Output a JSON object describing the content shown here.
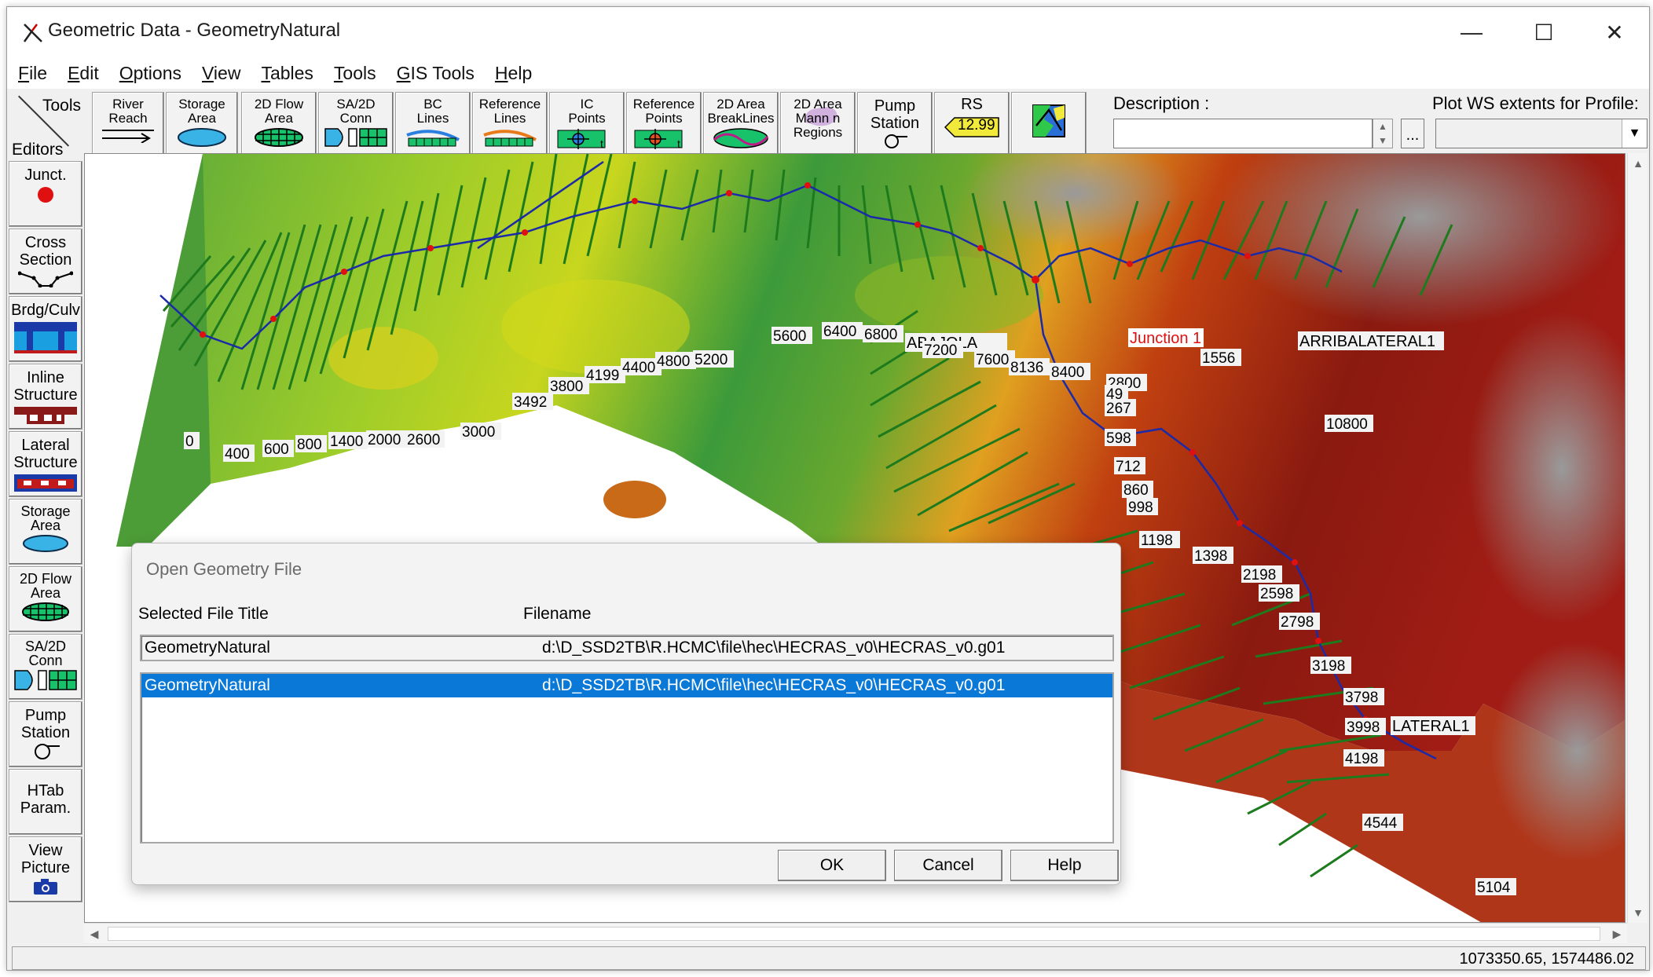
{
  "window": {
    "title": "Geometric Data - GeometryNatural",
    "minimize_glyph": "—",
    "maximize_glyph": "☐",
    "close_glyph": "✕"
  },
  "menu": {
    "items": [
      {
        "key": "F",
        "rest": "ile"
      },
      {
        "key": "E",
        "rest": "dit"
      },
      {
        "key": "O",
        "rest": "ptions"
      },
      {
        "key": "V",
        "rest": "iew"
      },
      {
        "key": "T",
        "rest": "ables"
      },
      {
        "key": "T",
        "rest": "ools"
      },
      {
        "key": "G",
        "rest": "IS Tools"
      },
      {
        "key": "H",
        "rest": "elp"
      }
    ]
  },
  "toolbar": {
    "tools_label": "Tools",
    "editors_label": "Editors",
    "buttons": [
      {
        "label": "River\nReach",
        "icon": "river-reach-icon"
      },
      {
        "label": "Storage\nArea",
        "icon": "storage-area-icon"
      },
      {
        "label": "2D Flow\nArea",
        "icon": "2d-flow-area-icon"
      },
      {
        "label": "SA/2D\nConn",
        "icon": "sa-2d-conn-icon"
      },
      {
        "label": "BC\nLines",
        "icon": "bc-lines-icon"
      },
      {
        "label": "Reference\nLines",
        "icon": "reference-lines-icon"
      },
      {
        "label": "IC\nPoints",
        "icon": "ic-points-icon"
      },
      {
        "label": "Reference\nPoints",
        "icon": "reference-points-icon"
      },
      {
        "label": "2D Area\nBreakLines",
        "icon": "breaklines-icon"
      },
      {
        "label": "2D Area\nMann n\nRegions",
        "icon": "mann-n-regions-icon"
      },
      {
        "label": "Pump\nStation",
        "icon": "pump-station-icon"
      },
      {
        "label": "RS",
        "icon": "rs-icon"
      },
      {
        "label": "",
        "icon": "gis-map-icon"
      }
    ],
    "rs_value": "12.99",
    "description_label": "Description :",
    "description_value": "",
    "description_more": "...",
    "profile_label": "Plot WS extents for Profile:",
    "profile_value": ""
  },
  "editors": [
    {
      "label": "Junct.",
      "icon": "junction-icon"
    },
    {
      "label": "Cross\nSection",
      "icon": "cross-section-icon"
    },
    {
      "label": "Brdg/Culv",
      "icon": "bridge-culvert-icon"
    },
    {
      "label": "Inline\nStructure",
      "icon": "inline-structure-icon"
    },
    {
      "label": "Lateral\nStructure",
      "icon": "lateral-structure-icon"
    },
    {
      "label": "Storage\nArea",
      "icon": "storage-area-icon"
    },
    {
      "label": "2D Flow\nArea",
      "icon": "2d-flow-area-icon"
    },
    {
      "label": "SA/2D\nConn",
      "icon": "sa-2d-conn-icon"
    },
    {
      "label": "Pump\nStation",
      "icon": "pump-station-icon"
    },
    {
      "label": "HTab\nParam.",
      "icon": ""
    },
    {
      "label": "View\nPicture",
      "icon": "camera-icon"
    }
  ],
  "map": {
    "river_labels": [
      "ABAJOLA",
      "ARRIBALATERAL1",
      "LATERAL1"
    ],
    "junction_label": "Junction 1",
    "main_reach_xs": [
      "0",
      "400",
      "600",
      "800",
      "1400",
      "2000",
      "2600",
      "3000",
      "3492",
      "3800",
      "4199",
      "4400",
      "4800",
      "5200",
      "5600",
      "6400",
      "6800",
      "7200",
      "7600",
      "8136",
      "8400"
    ],
    "upper_reach_xs": [
      "1556",
      "10800"
    ],
    "lateral_xs": [
      "2800",
      "49",
      "267",
      "598",
      "712",
      "860",
      "998",
      "1198",
      "1398",
      "2198",
      "2598",
      "2798",
      "3198",
      "3798",
      "3998",
      "4198",
      "4544",
      "5104"
    ]
  },
  "status": {
    "coordinates": "1073350.65, 1574486.02"
  },
  "dialog": {
    "title": "Open Geometry File",
    "col_title": "Selected File Title",
    "col_filename": "Filename",
    "current_title": "GeometryNatural",
    "current_filename": "d:\\D_SSD2TB\\R.HCMC\\file\\hec\\HECRAS_v0\\HECRAS_v0.g01",
    "rows": [
      {
        "title": "GeometryNatural",
        "filename": "d:\\D_SSD2TB\\R.HCMC\\file\\hec\\HECRAS_v0\\HECRAS_v0.g01",
        "selected": true
      }
    ],
    "ok": "OK",
    "cancel": "Cancel",
    "help": "Help"
  }
}
